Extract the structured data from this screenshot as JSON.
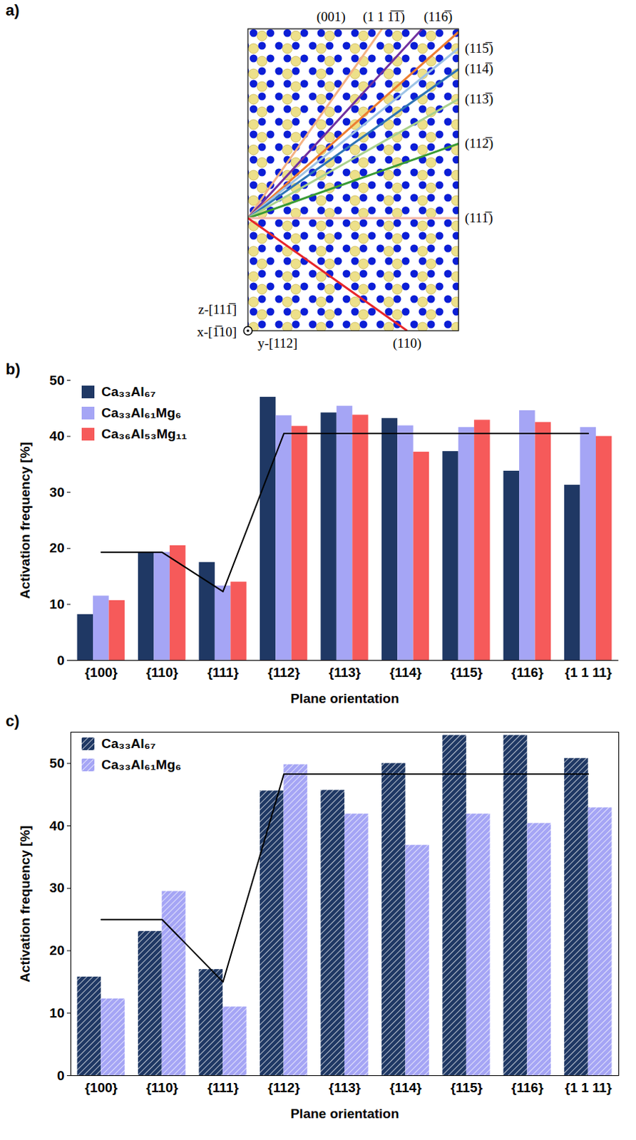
{
  "diagram": {
    "panel": "a)",
    "planes": [
      {
        "label": "(001)",
        "color": "#f4b183"
      },
      {
        "label": "(1 1 1̅1̅)",
        "color": "#7030a0"
      },
      {
        "label": "(116̅)",
        "color": "#ed7d31"
      },
      {
        "label": "(115̅)",
        "color": "#9dc3e6"
      },
      {
        "label": "(114̅)",
        "color": "#2e75b6"
      },
      {
        "label": "(113̅)",
        "color": "#a9d18e"
      },
      {
        "label": "(112̅)",
        "color": "#3a9b35"
      },
      {
        "label": "(111̅)",
        "color": "#f4b8a8"
      },
      {
        "label": "(110)",
        "color": "#e8262a"
      }
    ],
    "axes": {
      "z": "z-[111̅]",
      "x": "x-[1̅10]",
      "y": "y-[112]"
    }
  },
  "chart_data": [
    {
      "type": "bar",
      "panel": "b)",
      "x_label": "Plane orientation",
      "y_label": "Activation frequency [%]",
      "categories": [
        "{100}",
        "{110}",
        "{111}",
        "{112}",
        "{113}",
        "{114}",
        "{115}",
        "{116}",
        "{1 1 11}"
      ],
      "series": [
        {
          "name": "Ca₃₃Al₆₇",
          "color": "#1f3864",
          "values": [
            8.2,
            19.3,
            17.5,
            47.0,
            44.2,
            43.2,
            37.3,
            33.8,
            31.3
          ]
        },
        {
          "name": "Ca₃₃Al₆₁Mg₆",
          "color": "#a5a5f5",
          "values": [
            11.5,
            19.3,
            13.3,
            43.7,
            45.4,
            41.9,
            41.6,
            44.6,
            41.6
          ]
        },
        {
          "name": "Ca₃₆Al₅₃Mg₁₁",
          "color": "#f65a5a",
          "values": [
            10.7,
            20.5,
            14.0,
            41.8,
            43.8,
            37.2,
            42.9,
            42.5,
            40.0
          ]
        },
        {
          "type": "line",
          "color": "#000000",
          "values": [
            19.3,
            19.3,
            12.3,
            40.5,
            40.5,
            40.5,
            40.5,
            40.5,
            40.5
          ]
        }
      ],
      "ylim": [
        0,
        50
      ],
      "yticks": [
        0,
        10,
        20,
        30,
        40,
        50
      ],
      "legend": "top-left"
    },
    {
      "type": "bar",
      "panel": "c)",
      "x_label": "Plane orientation",
      "y_label": "Activation frequency [%]",
      "categories": [
        "{100}",
        "{110}",
        "{111}",
        "{112}",
        "{113}",
        "{114}",
        "{115}",
        "{116}",
        "{1 1 11}"
      ],
      "series": [
        {
          "name": "Ca₃₃Al₆₇",
          "color": "#1f3864",
          "line_style": "hatched",
          "values": [
            15.8,
            23.1,
            17.0,
            45.6,
            45.7,
            50.0,
            54.5,
            54.5,
            50.8
          ]
        },
        {
          "name": "Ca₃₃Al₆₁Mg₆",
          "color": "#a5a5f5",
          "line_style": "hatched",
          "values": [
            12.3,
            29.5,
            11.0,
            49.8,
            41.9,
            36.9,
            41.9,
            40.4,
            42.9
          ]
        },
        {
          "type": "line",
          "color": "#000000",
          "values": [
            25,
            25,
            15,
            48.3,
            48.3,
            48.3,
            48.3,
            48.3,
            48.3
          ]
        }
      ],
      "ylim": [
        0,
        55
      ],
      "yticks": [
        0,
        10,
        20,
        30,
        40,
        50
      ],
      "legend": "top-left"
    }
  ]
}
